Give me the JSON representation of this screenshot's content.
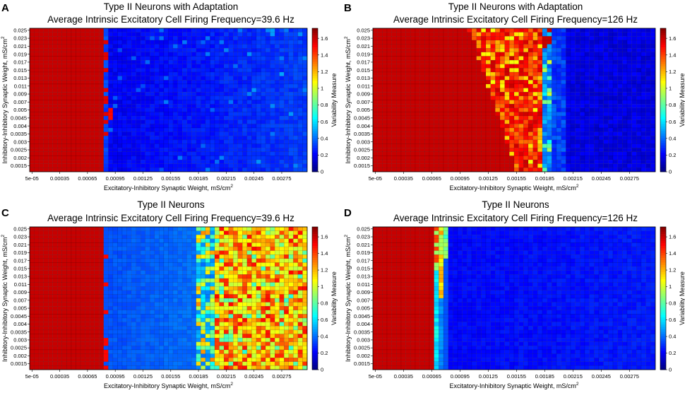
{
  "chart_data": [
    {
      "type": "heatmap",
      "panel": "A",
      "title": "Type II Neurons with Adaptation",
      "subtitle": "Average Intrinsic Excitatory Cell Firing Frequency=39.6 Hz",
      "xlabel": "Excitatory-Inhibitory Synaptic Weight, mS/cm",
      "ylabel": "Inhibitory-Inhibitory Synaptic Weight, mS/cm",
      "units_superscript": "2",
      "colorbar_label": "Variability Measure",
      "regime": "A"
    },
    {
      "type": "heatmap",
      "panel": "B",
      "title": "Type II Neurons with Adaptation",
      "subtitle": "Average Intrinsic Excitatory Cell Firing Frequency=126 Hz",
      "xlabel": "Excitatory-Inhibitory Synaptic Weight, mS/cm",
      "ylabel": "Inhibitory-Inhibitory Synaptic Weight, mS/cm",
      "units_superscript": "2",
      "colorbar_label": "Variability Measure",
      "regime": "B"
    },
    {
      "type": "heatmap",
      "panel": "C",
      "title": "Type II Neurons",
      "subtitle": "Average Intrinsic Excitatory Cell Firing Frequency=39.6 Hz",
      "xlabel": "Excitatory-Inhibitory Synaptic Weight, mS/cm",
      "ylabel": "Inhibitory-Inhibitory Synaptic Weight, mS/cm",
      "units_superscript": "2",
      "colorbar_label": "Variability Measure",
      "regime": "C"
    },
    {
      "type": "heatmap",
      "panel": "D",
      "title": "Type II Neurons",
      "subtitle": "Average Intrinsic Excitatory Cell Firing Frequency=126 Hz",
      "xlabel": "Excitatory-Inhibitory Synaptic Weight, mS/cm",
      "ylabel": "Inhibitory-Inhibitory Synaptic Weight, mS/cm",
      "units_superscript": "2",
      "colorbar_label": "Variability Measure",
      "regime": "D"
    }
  ],
  "shared": {
    "x_tick_labels": [
      "5e-05",
      "0.00035",
      "0.00065",
      "0.00095",
      "0.00125",
      "0.00155",
      "0.00185",
      "0.00215",
      "0.00245",
      "0.00275"
    ],
    "y_tick_labels": [
      "0.025",
      "0.023",
      "0.021",
      "0.019",
      "0.017",
      "0.015",
      "0.013",
      "0.011",
      "0.009",
      "0.007",
      "0.005",
      "0.0045",
      "0.004",
      "0.0035",
      "0.003",
      "0.0025",
      "0.002",
      "0.0015"
    ],
    "colorbar_ticks": [
      "1.6",
      "1.4",
      "1.2",
      "1",
      "0.8",
      "0.6",
      "0.4",
      "0.2",
      "0"
    ],
    "colorbar_range": [
      0,
      1.72
    ],
    "grid_columns": 60,
    "grid_rows": 36,
    "x_range": [
      5e-05,
      0.003
    ],
    "y_range": [
      0.0015,
      0.025
    ]
  }
}
